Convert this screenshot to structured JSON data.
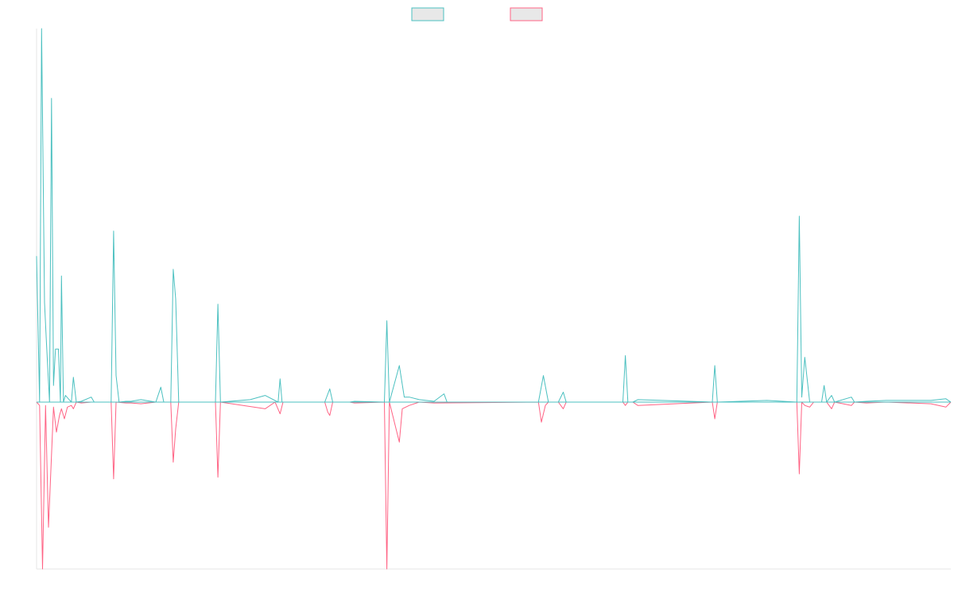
{
  "chart_data": {
    "type": "line",
    "title": "",
    "xlabel": "",
    "ylabel": "",
    "grid": false,
    "legend_position": "top-center",
    "x_range": [
      0,
      184
    ],
    "y_range": [
      -100,
      225
    ],
    "baseline": 0,
    "series": [
      {
        "color": "#4bc0c0",
        "fill": "#e8e8e8",
        "direction": "up",
        "peaks": [
          [
            0,
            88
          ],
          [
            0.6,
            0
          ],
          [
            1,
            225
          ],
          [
            1.6,
            60
          ],
          [
            2,
            35
          ],
          [
            2.6,
            0
          ],
          [
            3,
            183
          ],
          [
            3.4,
            10
          ],
          [
            3.8,
            32
          ],
          [
            4.4,
            32
          ],
          [
            4.8,
            0
          ],
          [
            5,
            76
          ],
          [
            5.4,
            0
          ],
          [
            5.8,
            4
          ],
          [
            6.4,
            2
          ],
          [
            7,
            0
          ],
          [
            7.4,
            15
          ],
          [
            8,
            0
          ],
          [
            9,
            0.5
          ],
          [
            11,
            3
          ],
          [
            11.6,
            0
          ],
          [
            15,
            0
          ],
          [
            15.5,
            103
          ],
          [
            16,
            16
          ],
          [
            16.6,
            0
          ],
          [
            18,
            0.5
          ],
          [
            19,
            0.5
          ],
          [
            21,
            1.5
          ],
          [
            24,
            0
          ],
          [
            25,
            9
          ],
          [
            25.6,
            0
          ],
          [
            27,
            0
          ],
          [
            27.5,
            80
          ],
          [
            28,
            62
          ],
          [
            28.6,
            0
          ],
          [
            36,
            0
          ],
          [
            36.5,
            59
          ],
          [
            37,
            0
          ],
          [
            43,
            1.5
          ],
          [
            46,
            4
          ],
          [
            48.6,
            0
          ],
          [
            49,
            14
          ],
          [
            49.4,
            0
          ],
          [
            58,
            0
          ],
          [
            59,
            8
          ],
          [
            59.6,
            0
          ],
          [
            63,
            0
          ],
          [
            64,
            0.5
          ],
          [
            70,
            0
          ],
          [
            70.5,
            49
          ],
          [
            71,
            0
          ],
          [
            73,
            22
          ],
          [
            74,
            3
          ],
          [
            75,
            3
          ],
          [
            77,
            1.5
          ],
          [
            80,
            0.5
          ],
          [
            82,
            5
          ],
          [
            82.6,
            0
          ],
          [
            101,
            0
          ],
          [
            102,
            16
          ],
          [
            103,
            0
          ],
          [
            105,
            0
          ],
          [
            106,
            6
          ],
          [
            106.6,
            0
          ],
          [
            118,
            0
          ],
          [
            118.5,
            28
          ],
          [
            119,
            0
          ],
          [
            120,
            0
          ],
          [
            121,
            1.5
          ],
          [
            136,
            0
          ],
          [
            136.5,
            22
          ],
          [
            137,
            0
          ],
          [
            147,
            1
          ],
          [
            153,
            0
          ],
          [
            153.5,
            112
          ],
          [
            154,
            3
          ],
          [
            154.6,
            27
          ],
          [
            155.6,
            0
          ],
          [
            158,
            0
          ],
          [
            158.5,
            10
          ],
          [
            159,
            0
          ],
          [
            160,
            4
          ],
          [
            160.6,
            0
          ],
          [
            164,
            3
          ],
          [
            164.6,
            0
          ],
          [
            167,
            0.5
          ],
          [
            171,
            1
          ],
          [
            180,
            1
          ],
          [
            183,
            2
          ],
          [
            184,
            0
          ]
        ]
      },
      {
        "color": "#ff6384",
        "fill": "#e8e8e8",
        "direction": "down",
        "peaks": [
          [
            0,
            0
          ],
          [
            0.6,
            2
          ],
          [
            1.2,
            100
          ],
          [
            1.8,
            2
          ],
          [
            2.4,
            75
          ],
          [
            3.4,
            3
          ],
          [
            4,
            18
          ],
          [
            4.6,
            8
          ],
          [
            5,
            4
          ],
          [
            5.6,
            10
          ],
          [
            6.2,
            3
          ],
          [
            7,
            2
          ],
          [
            7.4,
            4
          ],
          [
            8,
            0
          ],
          [
            9,
            0.5
          ],
          [
            11,
            0
          ],
          [
            15,
            0
          ],
          [
            15.5,
            46
          ],
          [
            16,
            0
          ],
          [
            18,
            0.5
          ],
          [
            19,
            0.5
          ],
          [
            21,
            1
          ],
          [
            24,
            0
          ],
          [
            27,
            0
          ],
          [
            27.5,
            36
          ],
          [
            28,
            16
          ],
          [
            28.6,
            0
          ],
          [
            36,
            0
          ],
          [
            36.5,
            45
          ],
          [
            37,
            0
          ],
          [
            46,
            4
          ],
          [
            48,
            0
          ],
          [
            49,
            7
          ],
          [
            49.6,
            0
          ],
          [
            58,
            0
          ],
          [
            58.6,
            6
          ],
          [
            59,
            8
          ],
          [
            59.6,
            0
          ],
          [
            63,
            0
          ],
          [
            64,
            0.5
          ],
          [
            70,
            0
          ],
          [
            70.5,
            100
          ],
          [
            71,
            0
          ],
          [
            73,
            24
          ],
          [
            73.6,
            4
          ],
          [
            75,
            2
          ],
          [
            77,
            0
          ],
          [
            80,
            0.5
          ],
          [
            101,
            0
          ],
          [
            101.6,
            12
          ],
          [
            102.4,
            2
          ],
          [
            103,
            0
          ],
          [
            105,
            0
          ],
          [
            106,
            4
          ],
          [
            106.6,
            0
          ],
          [
            118,
            0
          ],
          [
            118.5,
            2
          ],
          [
            119,
            0
          ],
          [
            120,
            0
          ],
          [
            121,
            2
          ],
          [
            136,
            0
          ],
          [
            136.5,
            10
          ],
          [
            137,
            0
          ],
          [
            147,
            0
          ],
          [
            153,
            0
          ],
          [
            153.5,
            43
          ],
          [
            154,
            0
          ],
          [
            154.6,
            2
          ],
          [
            155.6,
            3
          ],
          [
            156.4,
            0
          ],
          [
            159,
            0
          ],
          [
            160,
            4
          ],
          [
            160.6,
            0
          ],
          [
            164,
            2
          ],
          [
            164.6,
            0
          ],
          [
            167,
            0.5
          ],
          [
            171,
            0
          ],
          [
            180,
            1
          ],
          [
            183,
            3
          ],
          [
            184,
            0
          ]
        ]
      }
    ],
    "legend": [
      {
        "color": "#4bc0c0",
        "fill": "#e8e8e8"
      },
      {
        "color": "#ff6384",
        "fill": "#e8e8e8"
      }
    ]
  }
}
